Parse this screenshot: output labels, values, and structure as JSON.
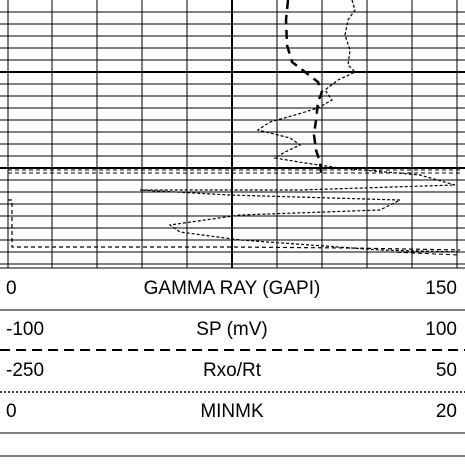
{
  "scales": [
    {
      "name": "GAMMA RAY (GAPI)",
      "left": "0",
      "right": "150"
    },
    {
      "name": "SP (mV)",
      "left": "-100",
      "right": "100"
    },
    {
      "name": "Rxo/Rt",
      "left": "-250",
      "right": "50"
    },
    {
      "name": "MINMK",
      "left": "0",
      "right": "20"
    }
  ]
}
